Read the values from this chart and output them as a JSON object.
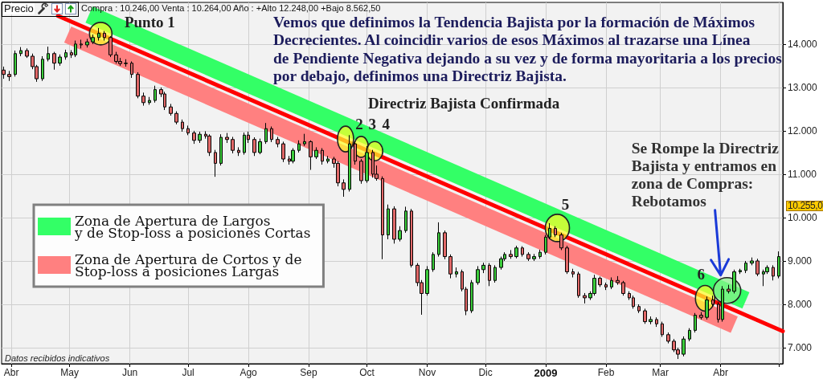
{
  "chart_data": {
    "type": "candlestick",
    "title": "Precio",
    "subtitle": "Compra : 10.246,00 Venta : 10.264,00 Año : +Alto 12.248,00 +Bajo 8.562,50",
    "x": [
      "2008-03-28",
      "2008-03-31",
      "2008-04-03",
      "2008-04-06",
      "2008-04-09",
      "2008-04-12",
      "2008-04-14",
      "2008-04-17",
      "2008-04-20",
      "2008-04-23",
      "2008-04-26",
      "2008-04-29",
      "2008-05-02",
      "2008-05-04",
      "2008-05-07",
      "2008-05-10",
      "2008-05-13",
      "2008-05-16",
      "2008-05-19",
      "2008-05-22",
      "2008-05-25",
      "2008-05-27",
      "2008-05-30",
      "2008-06-02",
      "2008-06-05",
      "2008-06-08",
      "2008-06-11",
      "2008-06-14",
      "2008-06-17",
      "2008-06-19",
      "2008-06-22",
      "2008-06-25",
      "2008-06-28",
      "2008-07-01",
      "2008-07-04",
      "2008-07-07",
      "2008-07-10",
      "2008-07-12",
      "2008-07-15",
      "2008-07-18",
      "2008-07-21",
      "2008-07-24",
      "2008-07-27",
      "2008-07-30",
      "2008-08-01",
      "2008-08-04",
      "2008-08-07",
      "2008-08-10",
      "2008-08-13",
      "2008-08-16",
      "2008-08-19",
      "2008-08-22",
      "2008-08-24",
      "2008-08-27",
      "2008-08-30",
      "2008-09-02",
      "2008-09-05",
      "2008-09-08",
      "2008-09-11",
      "2008-09-14",
      "2008-09-16",
      "2008-09-19",
      "2008-09-22",
      "2008-09-25",
      "2008-09-28",
      "2008-10-01",
      "2008-10-04",
      "2008-10-06",
      "2008-10-09",
      "2008-10-12",
      "2008-10-15",
      "2008-10-18",
      "2008-10-21",
      "2008-10-24",
      "2008-10-27",
      "2008-10-29",
      "2008-11-01",
      "2008-11-04",
      "2008-11-07",
      "2008-11-10",
      "2008-11-13",
      "2008-11-16",
      "2008-11-19",
      "2008-11-21",
      "2008-11-24",
      "2008-11-27",
      "2008-11-30",
      "2008-12-03",
      "2008-12-06",
      "2008-12-09",
      "2008-12-11",
      "2008-12-14",
      "2008-12-17",
      "2008-12-20",
      "2008-12-23",
      "2008-12-26",
      "2008-12-29",
      "2009-01-01",
      "2009-01-03",
      "2009-01-06",
      "2009-01-09",
      "2009-01-12",
      "2009-01-15",
      "2009-01-18",
      "2009-01-21",
      "2009-01-24",
      "2009-01-26",
      "2009-01-29",
      "2009-02-01",
      "2009-02-04",
      "2009-02-07",
      "2009-02-10",
      "2009-02-13",
      "2009-02-15",
      "2009-02-18",
      "2009-02-21",
      "2009-02-24",
      "2009-02-27",
      "2009-03-02",
      "2009-03-05",
      "2009-03-08",
      "2009-03-10",
      "2009-03-13",
      "2009-03-16",
      "2009-03-19",
      "2009-03-22",
      "2009-03-25",
      "2009-03-28",
      "2009-03-31",
      "2009-04-02",
      "2009-04-05",
      "2009-04-08",
      "2009-04-11",
      "2009-04-14",
      "2009-04-17",
      "2009-04-20",
      "2009-04-23",
      "2009-04-25",
      "2009-04-28",
      "2009-05-01"
    ],
    "ohlc": [
      [
        13400,
        13480,
        13200,
        13300
      ],
      [
        13300,
        13380,
        13150,
        13250
      ],
      [
        13300,
        13850,
        13250,
        13780
      ],
      [
        13780,
        13930,
        13720,
        13850
      ],
      [
        13850,
        13900,
        13680,
        13720
      ],
      [
        13720,
        13780,
        13420,
        13480
      ],
      [
        13480,
        13520,
        13130,
        13200
      ],
      [
        13200,
        13720,
        13150,
        13650
      ],
      [
        13650,
        13940,
        13600,
        13780
      ],
      [
        13780,
        13820,
        13410,
        13560
      ],
      [
        13560,
        13760,
        13500,
        13700
      ],
      [
        13700,
        13870,
        13640,
        13800
      ],
      [
        13800,
        13860,
        13680,
        13750
      ],
      [
        13750,
        14080,
        13700,
        14000
      ],
      [
        14000,
        14100,
        13900,
        13980
      ],
      [
        13980,
        14120,
        13920,
        14050
      ],
      [
        14050,
        14220,
        14000,
        14150
      ],
      [
        14150,
        14370,
        14080,
        14250
      ],
      [
        14250,
        14300,
        14080,
        14150
      ],
      [
        14150,
        14180,
        13700,
        13750
      ],
      [
        13750,
        13820,
        13550,
        13600
      ],
      [
        13600,
        13680,
        13500,
        13550
      ],
      [
        13550,
        13650,
        13480,
        13560
      ],
      [
        13560,
        13600,
        13220,
        13300
      ],
      [
        13300,
        13350,
        12750,
        12800
      ],
      [
        12800,
        12880,
        12580,
        12650
      ],
      [
        12650,
        12780,
        12600,
        12700
      ],
      [
        12700,
        13040,
        12650,
        12950
      ],
      [
        12950,
        13000,
        12780,
        12850
      ],
      [
        12850,
        12900,
        12480,
        12550
      ],
      [
        12550,
        12620,
        12350,
        12400
      ],
      [
        12400,
        12450,
        12150,
        12200
      ],
      [
        12200,
        12260,
        11980,
        12050
      ],
      [
        12050,
        12120,
        11900,
        11950
      ],
      [
        11950,
        12000,
        11700,
        11780
      ],
      [
        11780,
        11980,
        11720,
        11920
      ],
      [
        11920,
        11990,
        11820,
        11880
      ],
      [
        11880,
        11920,
        11420,
        11500
      ],
      [
        11500,
        11560,
        10940,
        11250
      ],
      [
        11250,
        11920,
        11200,
        11850
      ],
      [
        11850,
        11950,
        11720,
        11800
      ],
      [
        11800,
        11860,
        11480,
        11550
      ],
      [
        11550,
        11620,
        11420,
        11500
      ],
      [
        11500,
        11960,
        11450,
        11900
      ],
      [
        11900,
        11980,
        11720,
        11800
      ],
      [
        11800,
        11850,
        11420,
        11500
      ],
      [
        11500,
        11820,
        11460,
        11750
      ],
      [
        11750,
        12180,
        11700,
        12050
      ],
      [
        12050,
        12100,
        11740,
        11800
      ],
      [
        11800,
        11860,
        11620,
        11700
      ],
      [
        11700,
        11750,
        11280,
        11350
      ],
      [
        11350,
        11420,
        11220,
        11300
      ],
      [
        11300,
        11600,
        11250,
        11550
      ],
      [
        11550,
        11780,
        11500,
        11700
      ],
      [
        11700,
        11930,
        11650,
        11750
      ],
      [
        11750,
        11780,
        11100,
        11400
      ],
      [
        11400,
        11620,
        11350,
        11550
      ],
      [
        11550,
        11600,
        11220,
        11300
      ],
      [
        11300,
        11420,
        11250,
        11350
      ],
      [
        11350,
        11400,
        11150,
        11250
      ],
      [
        11250,
        11300,
        10720,
        10800
      ],
      [
        10800,
        10880,
        10480,
        10650
      ],
      [
        10650,
        11900,
        10600,
        11700
      ],
      [
        11700,
        11760,
        11220,
        11300
      ],
      [
        11300,
        11350,
        10780,
        10850
      ],
      [
        10850,
        11650,
        10800,
        11500
      ],
      [
        11500,
        11560,
        10920,
        11000
      ],
      [
        11000,
        11200,
        10850,
        10900
      ],
      [
        10900,
        10950,
        9040,
        9600
      ],
      [
        9600,
        10300,
        9500,
        10200
      ],
      [
        10200,
        10260,
        9400,
        9500
      ],
      [
        9500,
        9800,
        9450,
        9700
      ],
      [
        9700,
        10250,
        9650,
        10150
      ],
      [
        10150,
        10200,
        8850,
        8900
      ],
      [
        8900,
        8950,
        8420,
        8500
      ],
      [
        8500,
        8560,
        7760,
        8250
      ],
      [
        8250,
        8880,
        8200,
        8800
      ],
      [
        8800,
        9200,
        8750,
        9150
      ],
      [
        9150,
        9890,
        9100,
        9650
      ],
      [
        9650,
        9700,
        9040,
        9100
      ],
      [
        9100,
        9150,
        8600,
        8700
      ],
      [
        8700,
        8850,
        8620,
        8750
      ],
      [
        8750,
        8800,
        8300,
        8350
      ],
      [
        8350,
        8400,
        7750,
        7850
      ],
      [
        7850,
        8560,
        7800,
        8500
      ],
      [
        8500,
        8880,
        8450,
        8800
      ],
      [
        8800,
        8960,
        8720,
        8900
      ],
      [
        8900,
        8950,
        8420,
        8550
      ],
      [
        8550,
        8900,
        8500,
        8850
      ],
      [
        8850,
        9100,
        8800,
        9050
      ],
      [
        9050,
        9200,
        9000,
        9150
      ],
      [
        9150,
        9250,
        9050,
        9100
      ],
      [
        9100,
        9350,
        9060,
        9300
      ],
      [
        9300,
        9340,
        9100,
        9150
      ],
      [
        9150,
        9200,
        9000,
        9050
      ],
      [
        9050,
        9160,
        9000,
        9100
      ],
      [
        9100,
        9260,
        9050,
        9200
      ],
      [
        9200,
        9600,
        9150,
        9550
      ],
      [
        9550,
        9870,
        9500,
        9750
      ],
      [
        9750,
        9800,
        9550,
        9600
      ],
      [
        9600,
        9650,
        9250,
        9300
      ],
      [
        9300,
        9350,
        8700,
        8750
      ],
      [
        8750,
        8820,
        8620,
        8700
      ],
      [
        8700,
        8750,
        8150,
        8200
      ],
      [
        8200,
        8260,
        8020,
        8150
      ],
      [
        8150,
        8300,
        8100,
        8250
      ],
      [
        8250,
        8680,
        8200,
        8600
      ],
      [
        8600,
        8640,
        8400,
        8450
      ],
      [
        8450,
        8500,
        8330,
        8400
      ],
      [
        8400,
        8620,
        8350,
        8550
      ],
      [
        8550,
        8650,
        8450,
        8500
      ],
      [
        8500,
        8540,
        8200,
        8250
      ],
      [
        8250,
        8300,
        8100,
        8150
      ],
      [
        8150,
        8200,
        7900,
        7950
      ],
      [
        7950,
        8000,
        7800,
        7850
      ],
      [
        7850,
        7900,
        7550,
        7600
      ],
      [
        7600,
        7720,
        7540,
        7650
      ],
      [
        7650,
        7700,
        7480,
        7550
      ],
      [
        7550,
        7600,
        7250,
        7300
      ],
      [
        7300,
        7350,
        7100,
        7150
      ],
      [
        7150,
        7200,
        6900,
        6950
      ],
      [
        6950,
        7000,
        6740,
        6850
      ],
      [
        6850,
        7260,
        6800,
        7200
      ],
      [
        7200,
        7450,
        7150,
        7400
      ],
      [
        7400,
        7800,
        7350,
        7750
      ],
      [
        7750,
        7820,
        7650,
        7700
      ],
      [
        7700,
        8180,
        7650,
        8100
      ],
      [
        8100,
        8200,
        7950,
        8000
      ],
      [
        8000,
        8050,
        7580,
        7650
      ],
      [
        7650,
        8420,
        7600,
        8350
      ],
      [
        8350,
        8450,
        8250,
        8300
      ],
      [
        8300,
        8800,
        8250,
        8750
      ],
      [
        8750,
        8820,
        8700,
        8780
      ],
      [
        8780,
        9000,
        8720,
        8950
      ],
      [
        8950,
        9080,
        8900,
        9000
      ],
      [
        9000,
        9050,
        8650,
        8700
      ],
      [
        8700,
        8800,
        8420,
        8750
      ],
      [
        8750,
        8900,
        8700,
        8850
      ],
      [
        8850,
        8900,
        8550,
        8650
      ],
      [
        8650,
        9220,
        8600,
        9100
      ]
    ],
    "colors": [
      "#e06868",
      "#e06868",
      "#3ccc3c",
      "#3ccc3c",
      "#e06868",
      "#e06868",
      "#e06868",
      "#3ccc3c",
      "#3ccc3c",
      "#e06868",
      "#3ccc3c",
      "#3ccc3c",
      "#e06868",
      "#3ccc3c",
      "#e06868",
      "#3ccc3c",
      "#3ccc3c",
      "#3ccc3c",
      "#e06868",
      "#e06868",
      "#e06868",
      "#e06868",
      "#3ccc3c",
      "#e06868",
      "#e06868",
      "#e06868",
      "#3ccc3c",
      "#3ccc3c",
      "#e06868",
      "#e06868",
      "#e06868",
      "#e06868",
      "#e06868",
      "#e06868",
      "#e06868",
      "#3ccc3c",
      "#e06868",
      "#e06868",
      "#e06868",
      "#3ccc3c",
      "#e06868",
      "#e06868",
      "#e06868",
      "#3ccc3c",
      "#e06868",
      "#e06868",
      "#3ccc3c",
      "#3ccc3c",
      "#e06868",
      "#e06868",
      "#e06868",
      "#e06868",
      "#3ccc3c",
      "#3ccc3c",
      "#3ccc3c",
      "#e06868",
      "#3ccc3c",
      "#e06868",
      "#3ccc3c",
      "#e06868",
      "#e06868",
      "#e06868",
      "#3ccc3c",
      "#e06868",
      "#e06868",
      "#3ccc3c",
      "#e06868",
      "#e06868",
      "#e06868",
      "#3ccc3c",
      "#e06868",
      "#3ccc3c",
      "#3ccc3c",
      "#e06868",
      "#e06868",
      "#e06868",
      "#3ccc3c",
      "#3ccc3c",
      "#3ccc3c",
      "#e06868",
      "#e06868",
      "#3ccc3c",
      "#e06868",
      "#e06868",
      "#3ccc3c",
      "#3ccc3c",
      "#3ccc3c",
      "#e06868",
      "#3ccc3c",
      "#3ccc3c",
      "#3ccc3c",
      "#e06868",
      "#3ccc3c",
      "#e06868",
      "#e06868",
      "#3ccc3c",
      "#3ccc3c",
      "#3ccc3c",
      "#3ccc3c",
      "#e06868",
      "#e06868",
      "#e06868",
      "#e06868",
      "#e06868",
      "#e06868",
      "#3ccc3c",
      "#3ccc3c",
      "#e06868",
      "#e06868",
      "#3ccc3c",
      "#e06868",
      "#e06868",
      "#e06868",
      "#e06868",
      "#e06868",
      "#e06868",
      "#3ccc3c",
      "#e06868",
      "#e06868",
      "#e06868",
      "#e06868",
      "#e06868",
      "#3ccc3c",
      "#3ccc3c",
      "#3ccc3c",
      "#e06868",
      "#3ccc3c",
      "#e06868",
      "#e06868",
      "#3ccc3c",
      "#e06868",
      "#3ccc3c",
      "#3ccc3c",
      "#3ccc3c",
      "#3ccc3c",
      "#e06868",
      "#3ccc3c",
      "#3ccc3c",
      "#e06868",
      "#3ccc3c"
    ],
    "xlim": [
      "2008-03-27",
      "2009-05-03"
    ],
    "xticks": [
      {
        "value": "2008-04-01",
        "label": "Abr"
      },
      {
        "value": "2008-05-01",
        "label": "May"
      },
      {
        "value": "2008-06-01",
        "label": "Jun"
      },
      {
        "value": "2008-07-01",
        "label": "Jul"
      },
      {
        "value": "2008-08-01",
        "label": "Ago"
      },
      {
        "value": "2008-09-01",
        "label": "Sep"
      },
      {
        "value": "2008-10-01",
        "label": "Oct"
      },
      {
        "value": "2008-11-01",
        "label": "Nov"
      },
      {
        "value": "2008-12-01",
        "label": "Dic"
      },
      {
        "value": "2009-01-01",
        "label": "2009"
      },
      {
        "value": "2009-02-01",
        "label": "Feb"
      },
      {
        "value": "2009-03-01",
        "label": "Mar"
      },
      {
        "value": "2009-04-01",
        "label": "Abr"
      },
      {
        "value": "2009-05-01",
        "label": null
      }
    ],
    "ylim": [
      6630,
      14960
    ],
    "yticks": [
      {
        "value": 7000,
        "label": "7.000"
      },
      {
        "value": 8000,
        "label": "8.000"
      },
      {
        "value": 9000,
        "label": "9.000"
      },
      {
        "value": 10000,
        "label": "10.000"
      },
      {
        "value": 11000,
        "label": "11.000"
      },
      {
        "value": 12000,
        "label": "12.000"
      },
      {
        "value": 13000,
        "label": "13.000"
      },
      {
        "value": 14000,
        "label": "14.000"
      }
    ],
    "grid": true,
    "legend": "left",
    "series": [
      {
        "name": "Zona de Apertura de Largos\ny de Stop-loss a posiciones Cortas",
        "type": "line",
        "color": "#33ff66",
        "x": [
          "2008-05-11",
          "2009-04-14"
        ],
        "values": [
          14680,
          8090
        ]
      },
      {
        "name": "Zona de Apertura de Cortos y de\nStop-loss a posiciones Largas",
        "type": "line",
        "color": "#ff8080",
        "x": [
          "2008-04-30",
          "2009-04-08"
        ],
        "values": [
          14220,
          7530
        ]
      },
      {
        "type": "line",
        "color": "#ff0000",
        "x": [
          "2008-04-25",
          "2009-05-03"
        ],
        "values": [
          14650,
          7380
        ]
      }
    ],
    "annotations": [
      "Vemos que definimos la Tendencia Bajista por la formación de Máximos\nDecrecientes. Al coincidir varios de esos Máximos al trazarse una Línea\nde Pendiente Negativa dejando a su vez y de forma mayoritaria a los precios\npor debajo, definimos una Directriz Bajista.",
      "Directriz Bajista Confirmada",
      {
        "text": "Punto 1",
        "x": "2008-05-17",
        "y": 14240
      },
      {
        "text": "2",
        "x": "2008-09-20",
        "y": 11810
      },
      {
        "text": "3",
        "x": "2008-09-28",
        "y": 11630
      },
      {
        "text": "4",
        "x": "2008-10-05",
        "y": 11530
      },
      {
        "text": "5",
        "x": "2009-01-07",
        "y": 9760
      },
      {
        "text": "6",
        "x": "2009-03-24",
        "y": 8140
      },
      {
        "text": "Se Rompe la Directriz\nBajista y entramos en\nzona de Compras:\nRebotamos",
        "x": "2009-04-01",
        "y": 8670
      },
      "10.255,0",
      "Datos recibidos indicativos"
    ]
  }
}
